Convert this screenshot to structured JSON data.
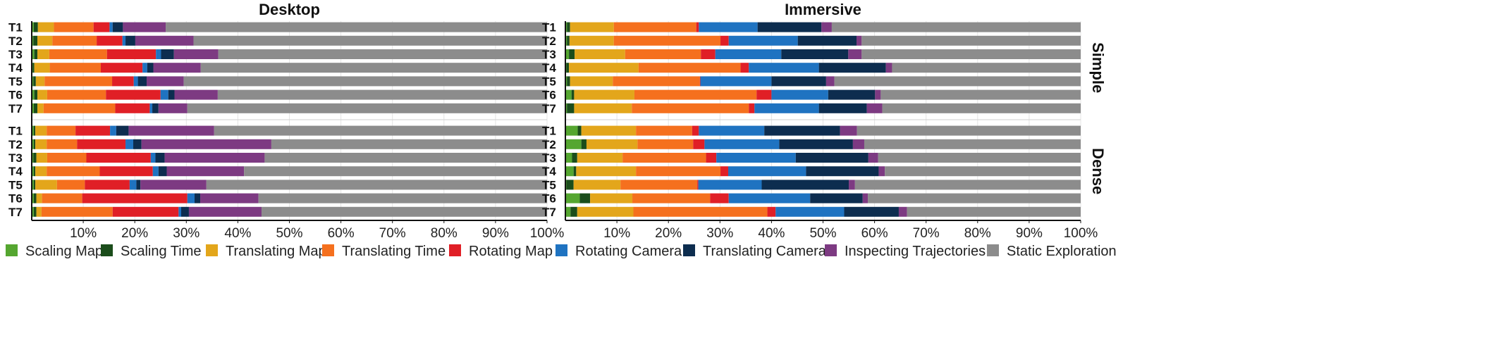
{
  "chart_data": {
    "type": "bar",
    "orientation": "horizontal",
    "stacked": true,
    "normalized": true,
    "panel_titles": [
      "Desktop",
      "Immersive"
    ],
    "group_labels": [
      "Simple",
      "Dense"
    ],
    "categories": [
      "T1",
      "T2",
      "T3",
      "T4",
      "T5",
      "T6",
      "T7"
    ],
    "x_ticks": [
      "10%",
      "20%",
      "30%",
      "40%",
      "50%",
      "60%",
      "70%",
      "80%",
      "90%",
      "100%"
    ],
    "xlim": [
      0,
      100
    ],
    "grid": true,
    "legend_position": "bottom",
    "series": [
      {
        "name": "Scaling Map",
        "color": "#55a630"
      },
      {
        "name": "Scaling Time",
        "color": "#1b4d1b"
      },
      {
        "name": "Translating Map",
        "color": "#e3a61b"
      },
      {
        "name": "Translating Time",
        "color": "#f5701e"
      },
      {
        "name": "Rotating Map",
        "color": "#e01f26"
      },
      {
        "name": "Rotating Camera",
        "color": "#1f73c1"
      },
      {
        "name": "Translating Camera",
        "color": "#0d2d4f"
      },
      {
        "name": "Inspecting Trajectories",
        "color": "#7d3a82"
      },
      {
        "name": "Static Exploration",
        "color": "#8c8c8c"
      }
    ],
    "panels": [
      {
        "view": "Desktop",
        "group": "Simple",
        "rows": [
          [
            0.4,
            0.8,
            3.1,
            7.7,
            3.1,
            0.6,
            2.0,
            8.3,
            74.0
          ],
          [
            0.3,
            0.8,
            2.9,
            8.6,
            5.0,
            0.6,
            1.9,
            11.3,
            68.6
          ],
          [
            0.5,
            0.6,
            2.3,
            11.2,
            9.5,
            1.0,
            2.5,
            8.6,
            63.8
          ],
          [
            0.2,
            0.3,
            3.0,
            9.9,
            8.1,
            0.9,
            1.2,
            9.2,
            67.2
          ],
          [
            0.3,
            0.5,
            1.7,
            13.1,
            4.2,
            0.8,
            1.7,
            7.2,
            70.5
          ],
          [
            0.5,
            0.6,
            1.9,
            11.4,
            10.6,
            1.5,
            1.2,
            8.4,
            63.9
          ],
          [
            0.4,
            0.7,
            1.2,
            13.9,
            6.7,
            0.5,
            1.2,
            5.6,
            69.8
          ]
        ]
      },
      {
        "view": "Desktop",
        "group": "Dense",
        "rows": [
          [
            0.4,
            0.3,
            2.2,
            5.6,
            6.7,
            1.2,
            2.4,
            16.6,
            64.6
          ],
          [
            0.4,
            0.3,
            2.2,
            5.9,
            9.4,
            1.5,
            1.6,
            25.2,
            53.5
          ],
          [
            0.3,
            0.6,
            2.1,
            7.6,
            12.5,
            0.9,
            1.8,
            19.4,
            54.8
          ],
          [
            0.4,
            0.3,
            2.2,
            10.3,
            10.3,
            1.1,
            1.6,
            15.0,
            58.8
          ],
          [
            0.4,
            0.3,
            4.2,
            5.4,
            8.7,
            1.3,
            0.8,
            12.8,
            66.1
          ],
          [
            0.4,
            0.5,
            1.1,
            7.8,
            20.4,
            1.4,
            1.1,
            11.3,
            56.0
          ],
          [
            0.4,
            0.5,
            1.0,
            13.8,
            12.8,
            0.5,
            1.5,
            14.1,
            55.4
          ]
        ]
      },
      {
        "view": "Immersive",
        "group": "Simple",
        "rows": [
          [
            0.3,
            0.6,
            8.5,
            16.0,
            0.5,
            11.4,
            12.4,
            2.0,
            48.3
          ],
          [
            0.3,
            0.5,
            8.6,
            20.7,
            1.6,
            13.4,
            11.4,
            1.0,
            42.5
          ],
          [
            0.7,
            1.1,
            9.8,
            14.7,
            2.8,
            12.8,
            13.0,
            2.6,
            42.5
          ],
          [
            0.2,
            0.5,
            13.5,
            19.8,
            1.6,
            13.6,
            13.0,
            1.2,
            36.6
          ],
          [
            0.3,
            0.6,
            8.3,
            16.9,
            0.1,
            13.8,
            10.6,
            1.6,
            47.8
          ],
          [
            1.2,
            0.5,
            11.7,
            23.7,
            2.9,
            11.0,
            9.1,
            1.1,
            38.8
          ],
          [
            0.3,
            1.4,
            11.2,
            22.7,
            1.1,
            12.5,
            9.3,
            3.0,
            38.5
          ]
        ]
      },
      {
        "view": "Immersive",
        "group": "Dense",
        "rows": [
          [
            2.4,
            0.7,
            10.6,
            10.9,
            1.3,
            12.7,
            14.7,
            3.3,
            43.4
          ],
          [
            3.1,
            1.0,
            9.9,
            10.8,
            2.2,
            14.5,
            14.3,
            2.2,
            42.0
          ],
          [
            1.3,
            1.0,
            8.8,
            16.2,
            2.0,
            15.4,
            14.1,
            1.9,
            39.3
          ],
          [
            1.6,
            0.5,
            11.6,
            16.4,
            1.5,
            15.1,
            14.1,
            1.2,
            38.0
          ],
          [
            0.2,
            1.4,
            9.1,
            14.9,
            0.2,
            12.3,
            16.9,
            1.2,
            43.8
          ],
          [
            2.8,
            2.0,
            8.2,
            15.1,
            3.6,
            15.8,
            10.2,
            1.0,
            41.3
          ],
          [
            1.0,
            1.3,
            10.9,
            26.0,
            1.6,
            13.3,
            10.6,
            1.6,
            33.7
          ]
        ]
      }
    ]
  }
}
